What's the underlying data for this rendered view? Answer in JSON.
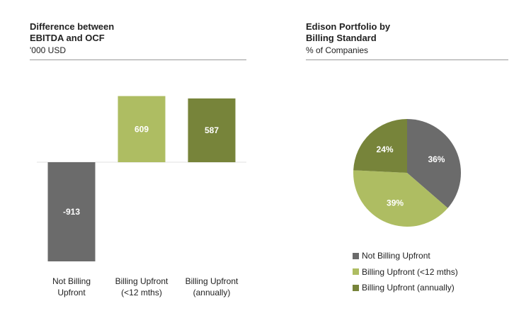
{
  "colors": {
    "not_billing": "#6b6b6b",
    "billing_12": "#aebd62",
    "billing_annual": "#77843a",
    "baseline": "#e2e2e2"
  },
  "left": {
    "title_line1": "Difference between",
    "title_line2": "EBITDA and OCF",
    "subtitle": "'000 USD"
  },
  "right": {
    "title_line1": "Edison Portfolio by",
    "title_line2": "Billing Standard",
    "subtitle": "% of Companies"
  },
  "chart_data": [
    {
      "type": "bar",
      "title": "Difference between EBITDA and OCF",
      "ylabel": "'000 USD",
      "categories": [
        [
          "Not Billing",
          "Upfront"
        ],
        [
          "Billing Upfront",
          "(<12 mths)"
        ],
        [
          "Billing Upfront",
          "(annually)"
        ]
      ],
      "values": [
        -913,
        609,
        587
      ],
      "labels": [
        "-913",
        "609",
        "587"
      ],
      "ylim": [
        -913,
        609
      ]
    },
    {
      "type": "pie",
      "title": "Edison Portfolio by Billing Standard",
      "subtitle": "% of Companies",
      "slices": [
        {
          "name": "Not Billing Upfront",
          "value": 36,
          "label": "36%"
        },
        {
          "name": "Billing Upfront (<12 mths)",
          "value": 39,
          "label": "39%"
        },
        {
          "name": "Billing Upfront (annually)",
          "value": 24,
          "label": "24%"
        }
      ],
      "legend_position": "bottom"
    }
  ]
}
